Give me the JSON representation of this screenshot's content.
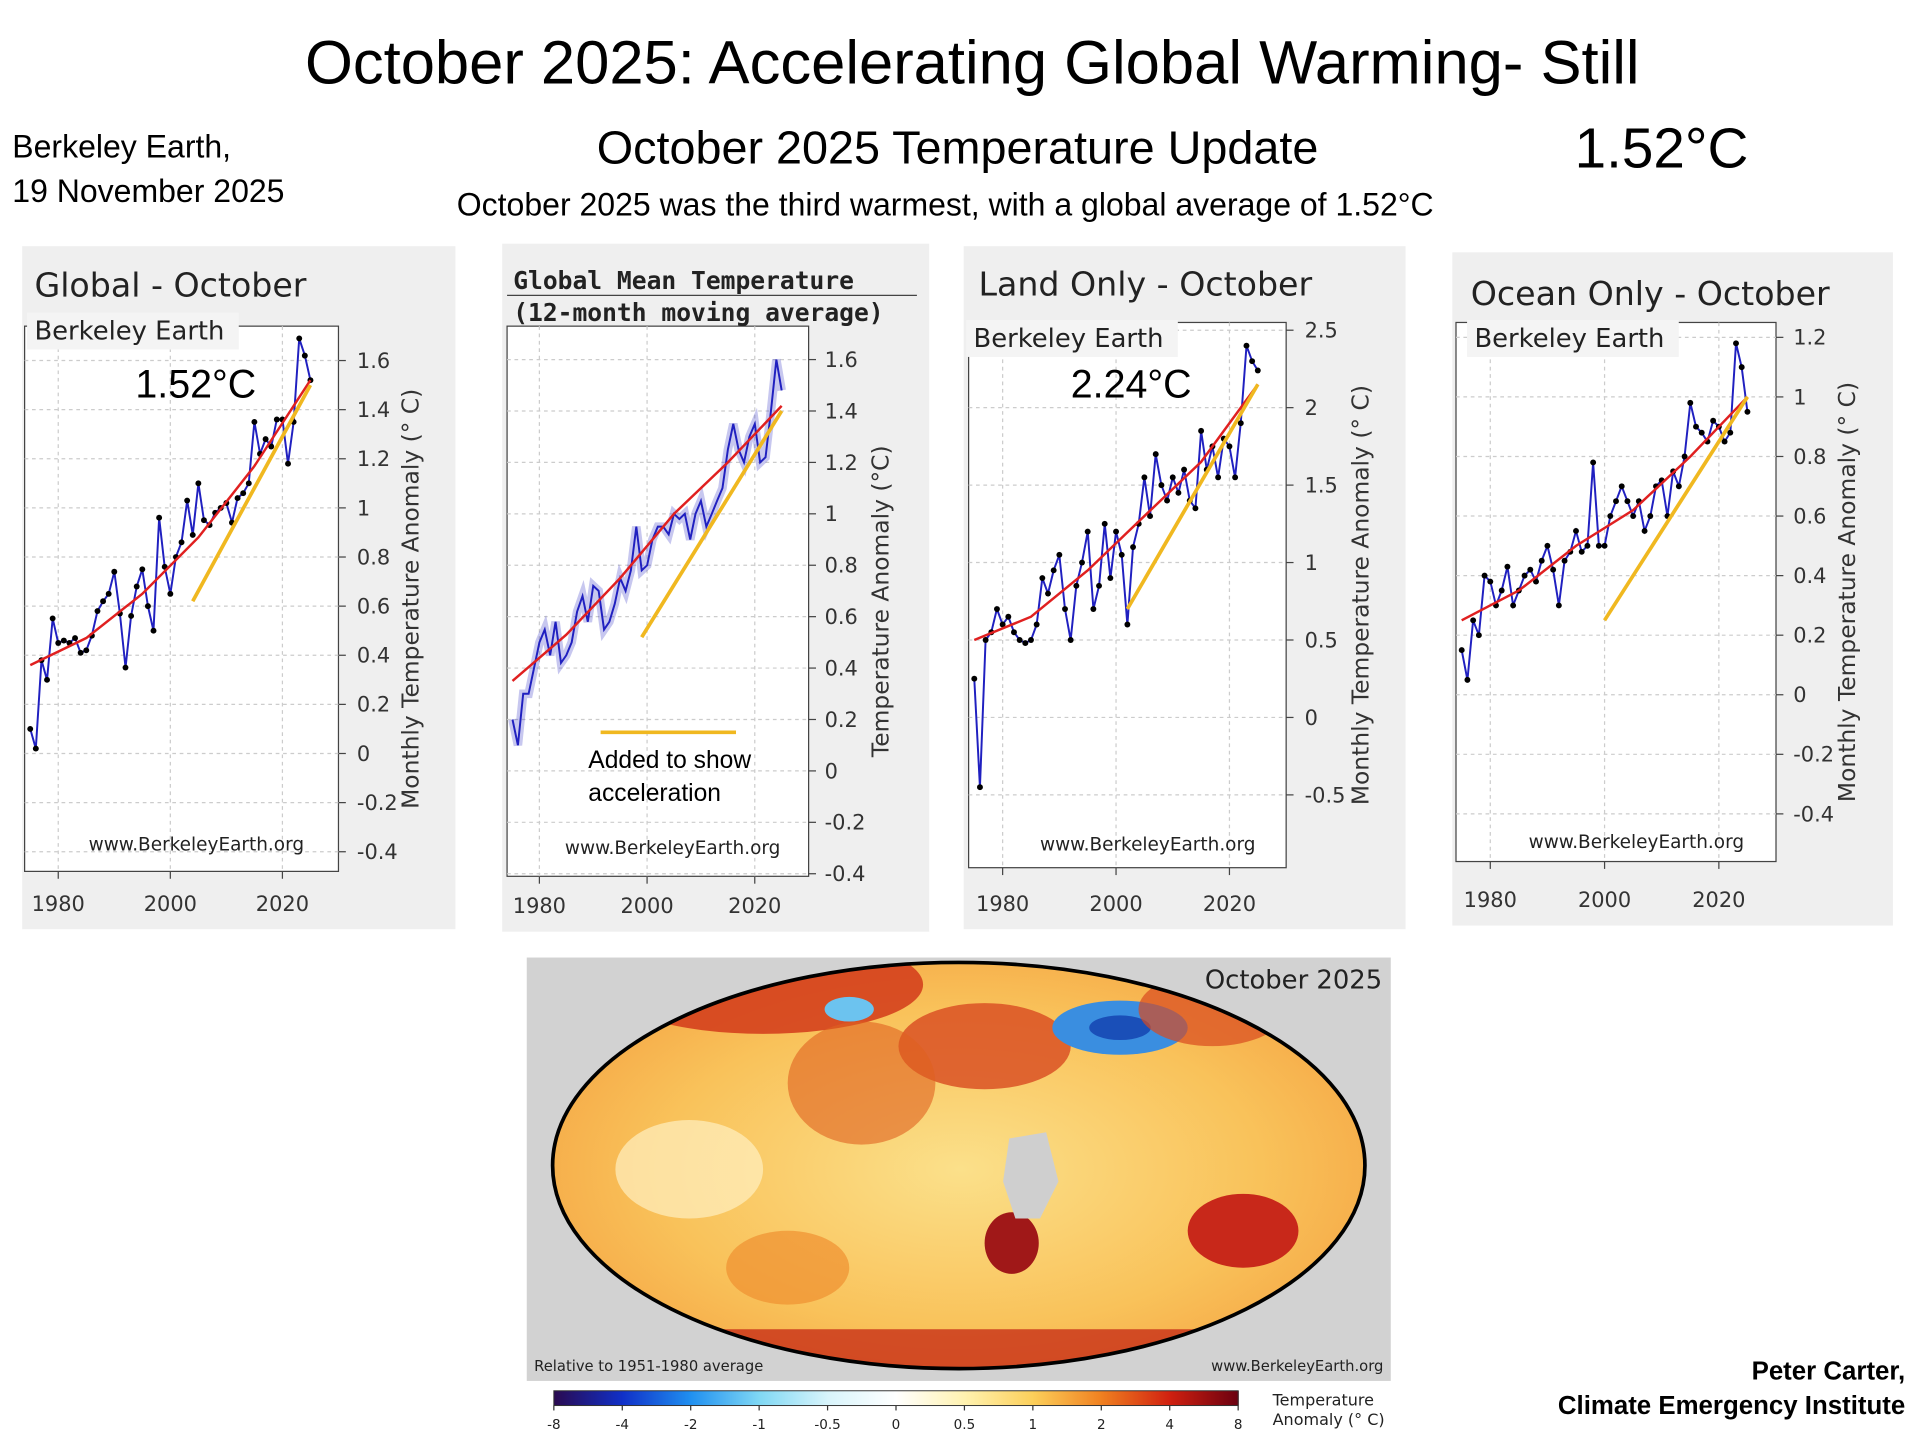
{
  "header": {
    "title": "October 2025: Accelerating Global Warming- Still",
    "source_line1": "Berkeley Earth,",
    "source_line2": "19 November 2025",
    "update_title": "October 2025 Temperature Update",
    "headline_value": "1.52°C",
    "subtitle": "October 2025 was the third warmest, with a global average of 1.52°C",
    "credit_line1": "Peter Carter,",
    "credit_line2": "Climate Emergency Institute"
  },
  "chart_data": [
    {
      "type": "line",
      "title": "Global - October",
      "source": "Berkeley Earth",
      "annotation": "1.52°C",
      "watermark": "www.BerkeleyEarth.org",
      "ylabel": "Monthly Temperature Anomaly (° C)",
      "x": [
        1975,
        1976,
        1977,
        1978,
        1979,
        1980,
        1981,
        1982,
        1983,
        1984,
        1985,
        1986,
        1987,
        1988,
        1989,
        1990,
        1991,
        1992,
        1993,
        1994,
        1995,
        1996,
        1997,
        1998,
        1999,
        2000,
        2001,
        2002,
        2003,
        2004,
        2005,
        2006,
        2007,
        2008,
        2009,
        2010,
        2011,
        2012,
        2013,
        2014,
        2015,
        2016,
        2017,
        2018,
        2019,
        2020,
        2021,
        2022,
        2023,
        2024,
        2025
      ],
      "series": [
        {
          "color": "#2020c0",
          "markers": true,
          "values": [
            0.1,
            0.02,
            0.38,
            0.3,
            0.55,
            0.45,
            0.46,
            0.45,
            0.47,
            0.41,
            0.42,
            0.48,
            0.58,
            0.62,
            0.65,
            0.74,
            0.57,
            0.35,
            0.56,
            0.68,
            0.75,
            0.6,
            0.5,
            0.96,
            0.76,
            0.65,
            0.8,
            0.86,
            1.03,
            0.89,
            1.1,
            0.95,
            0.93,
            0.98,
            1.0,
            1.02,
            0.94,
            1.04,
            1.06,
            1.1,
            1.35,
            1.22,
            1.28,
            1.25,
            1.36,
            1.36,
            1.18,
            1.35,
            1.69,
            1.62,
            1.52
          ]
        },
        {
          "color": "#e02020",
          "x": [
            1975,
            1985,
            1995,
            2005,
            2015,
            2025
          ],
          "values": [
            0.36,
            0.47,
            0.65,
            0.88,
            1.17,
            1.52
          ]
        },
        {
          "color": "#f0b820",
          "x": [
            2004,
            2025
          ],
          "values": [
            0.62,
            1.5
          ]
        }
      ],
      "xlim": [
        1974,
        2030
      ],
      "xticks": [
        1980,
        2000,
        2020
      ],
      "ylim": [
        -0.48,
        1.74
      ],
      "yticks": [
        -0.4,
        -0.2,
        0,
        0.2,
        0.4,
        0.6,
        0.8,
        1,
        1.2,
        1.4,
        1.6
      ],
      "grid": true
    },
    {
      "type": "line",
      "title": "Global Mean Temperature",
      "subtitle": "(12-month moving average)",
      "legend_note": [
        "Added to show",
        "acceleration"
      ],
      "legend_color": "#f0b820",
      "watermark": "www.BerkeleyEarth.org",
      "ylabel": "Temperature Anomaly (°C)",
      "x": [
        1975,
        1976,
        1977,
        1978,
        1979,
        1980,
        1981,
        1982,
        1983,
        1984,
        1985,
        1986,
        1987,
        1988,
        1989,
        1990,
        1991,
        1992,
        1993,
        1994,
        1995,
        1996,
        1997,
        1998,
        1999,
        2000,
        2001,
        2002,
        2003,
        2004,
        2005,
        2006,
        2007,
        2008,
        2009,
        2010,
        2011,
        2012,
        2013,
        2014,
        2015,
        2016,
        2017,
        2018,
        2019,
        2020,
        2021,
        2022,
        2023,
        2024,
        2025
      ],
      "series": [
        {
          "color": "#2020c0",
          "markers": false,
          "values": [
            0.2,
            0.1,
            0.3,
            0.3,
            0.4,
            0.5,
            0.55,
            0.45,
            0.58,
            0.42,
            0.45,
            0.5,
            0.62,
            0.68,
            0.58,
            0.72,
            0.7,
            0.55,
            0.58,
            0.65,
            0.75,
            0.7,
            0.78,
            0.95,
            0.78,
            0.8,
            0.9,
            0.95,
            0.95,
            0.92,
            1.0,
            0.98,
            1.0,
            0.9,
            1.0,
            1.05,
            0.95,
            1.0,
            1.05,
            1.1,
            1.25,
            1.35,
            1.25,
            1.2,
            1.3,
            1.35,
            1.2,
            1.22,
            1.4,
            1.6,
            1.48
          ]
        },
        {
          "color": "#e02020",
          "x": [
            1975,
            1985,
            1995,
            2005,
            2015,
            2025
          ],
          "values": [
            0.35,
            0.53,
            0.75,
            1.0,
            1.2,
            1.42
          ]
        },
        {
          "color": "#f0b820",
          "x": [
            1999,
            2025
          ],
          "values": [
            0.52,
            1.4
          ]
        }
      ],
      "xlim": [
        1974,
        2030
      ],
      "xticks": [
        1980,
        2000,
        2020
      ],
      "ylim": [
        -0.41,
        1.73
      ],
      "yticks": [
        -0.4,
        -0.2,
        0,
        0.2,
        0.4,
        0.6,
        0.8,
        1,
        1.2,
        1.4,
        1.6
      ],
      "grid": true
    },
    {
      "type": "line",
      "title": "Land Only - October",
      "source": "Berkeley Earth",
      "annotation": "2.24°C",
      "watermark": "www.BerkeleyEarth.org",
      "ylabel": "Monthly Temperature Anomaly (° C)",
      "x": [
        1975,
        1976,
        1977,
        1978,
        1979,
        1980,
        1981,
        1982,
        1983,
        1984,
        1985,
        1986,
        1987,
        1988,
        1989,
        1990,
        1991,
        1992,
        1993,
        1994,
        1995,
        1996,
        1997,
        1998,
        1999,
        2000,
        2001,
        2002,
        2003,
        2004,
        2005,
        2006,
        2007,
        2008,
        2009,
        2010,
        2011,
        2012,
        2013,
        2014,
        2015,
        2016,
        2017,
        2018,
        2019,
        2020,
        2021,
        2022,
        2023,
        2024,
        2025
      ],
      "series": [
        {
          "color": "#2020c0",
          "markers": true,
          "values": [
            0.25,
            -0.45,
            0.5,
            0.55,
            0.7,
            0.6,
            0.65,
            0.55,
            0.5,
            0.48,
            0.5,
            0.6,
            0.9,
            0.8,
            0.95,
            1.05,
            0.7,
            0.5,
            0.85,
            1.0,
            1.2,
            0.7,
            0.85,
            1.25,
            0.9,
            1.2,
            1.05,
            0.6,
            1.1,
            1.25,
            1.55,
            1.3,
            1.7,
            1.5,
            1.4,
            1.55,
            1.45,
            1.6,
            1.4,
            1.35,
            1.85,
            1.6,
            1.75,
            1.55,
            1.8,
            1.75,
            1.55,
            1.9,
            2.4,
            2.3,
            2.24
          ]
        },
        {
          "color": "#e02020",
          "x": [
            1975,
            1985,
            1995,
            2005,
            2015,
            2025
          ],
          "values": [
            0.5,
            0.65,
            0.95,
            1.3,
            1.65,
            2.15
          ]
        },
        {
          "color": "#f0b820",
          "x": [
            2002,
            2025
          ],
          "values": [
            0.7,
            2.15
          ]
        }
      ],
      "xlim": [
        1974,
        2030
      ],
      "xticks": [
        1980,
        2000,
        2020
      ],
      "ylim": [
        -0.97,
        2.55
      ],
      "yticks": [
        -0.5,
        0,
        0.5,
        1,
        1.5,
        2,
        2.5
      ],
      "grid": true
    },
    {
      "type": "line",
      "title": "Ocean Only - October",
      "source": "Berkeley Earth",
      "watermark": "www.BerkeleyEarth.org",
      "ylabel": "Monthly Temperature Anomaly (° C)",
      "x": [
        1975,
        1976,
        1977,
        1978,
        1979,
        1980,
        1981,
        1982,
        1983,
        1984,
        1985,
        1986,
        1987,
        1988,
        1989,
        1990,
        1991,
        1992,
        1993,
        1994,
        1995,
        1996,
        1997,
        1998,
        1999,
        2000,
        2001,
        2002,
        2003,
        2004,
        2005,
        2006,
        2007,
        2008,
        2009,
        2010,
        2011,
        2012,
        2013,
        2014,
        2015,
        2016,
        2017,
        2018,
        2019,
        2020,
        2021,
        2022,
        2023,
        2024,
        2025
      ],
      "series": [
        {
          "color": "#2020c0",
          "markers": true,
          "values": [
            0.15,
            0.05,
            0.25,
            0.2,
            0.4,
            0.38,
            0.3,
            0.35,
            0.43,
            0.3,
            0.35,
            0.4,
            0.42,
            0.38,
            0.45,
            0.5,
            0.42,
            0.3,
            0.45,
            0.48,
            0.55,
            0.48,
            0.5,
            0.78,
            0.5,
            0.5,
            0.6,
            0.65,
            0.7,
            0.65,
            0.6,
            0.65,
            0.55,
            0.6,
            0.7,
            0.72,
            0.6,
            0.75,
            0.7,
            0.8,
            0.98,
            0.9,
            0.88,
            0.85,
            0.92,
            0.9,
            0.85,
            0.88,
            1.18,
            1.1,
            0.95
          ]
        },
        {
          "color": "#e02020",
          "x": [
            1975,
            1985,
            1995,
            2005,
            2015,
            2025
          ],
          "values": [
            0.25,
            0.35,
            0.5,
            0.62,
            0.8,
            1.0
          ]
        },
        {
          "color": "#f0b820",
          "x": [
            2000,
            2025
          ],
          "values": [
            0.25,
            1.0
          ]
        }
      ],
      "xlim": [
        1974,
        2030
      ],
      "xticks": [
        1980,
        2000,
        2020
      ],
      "ylim": [
        -0.56,
        1.25
      ],
      "yticks": [
        -0.4,
        -0.2,
        0,
        0.2,
        0.4,
        0.6,
        0.8,
        1,
        1.2
      ],
      "grid": true
    },
    {
      "type": "map",
      "title": "October 2025",
      "note": "Relative to 1951-1980 average",
      "watermark": "www.BerkeleyEarth.org",
      "colorbar_label": [
        "Temperature",
        "Anomaly (° C)"
      ],
      "colorbar_ticks": [
        -8,
        -4,
        -2,
        -1,
        -0.5,
        0,
        0.5,
        1,
        2,
        4,
        8
      ],
      "colors": [
        "#2a0a50",
        "#1030c8",
        "#2090f0",
        "#80d8f4",
        "#d8f4fb",
        "#ffffff",
        "#fff2b0",
        "#fccf5a",
        "#f08020",
        "#d02010",
        "#6a0010"
      ]
    }
  ]
}
